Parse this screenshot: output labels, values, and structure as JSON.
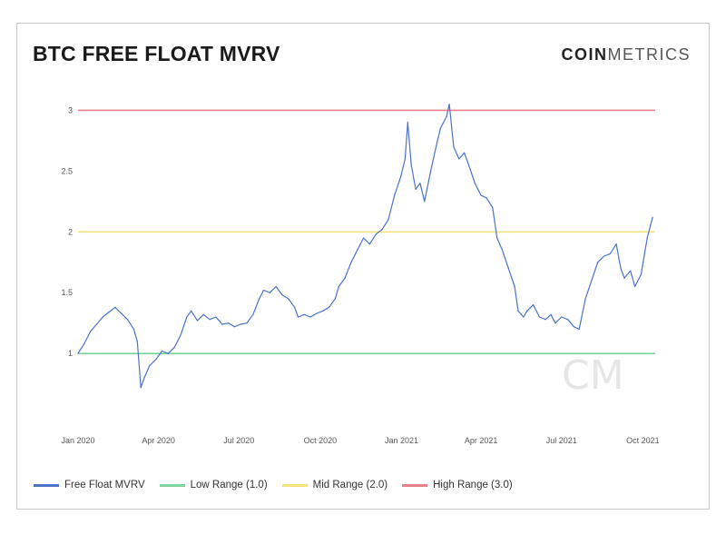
{
  "header": {
    "title": "BTC FREE FLOAT MVRV",
    "brand_bold": "COIN",
    "brand_light": "METRICS"
  },
  "watermark": "CM",
  "colors": {
    "series": "#4a73c9",
    "low": "#7ed39b",
    "mid": "#f6e27a",
    "high": "#e9818b"
  },
  "chart_data": {
    "type": "line",
    "title": "BTC FREE FLOAT MVRV",
    "xlabel": "",
    "ylabel": "",
    "grid": false,
    "legend_position": "bottom",
    "ylim": [
      0.65,
      3.1
    ],
    "xlim": [
      "2020-01-01",
      "2021-10-15"
    ],
    "yticks": [
      {
        "value": 1,
        "label": "1"
      },
      {
        "value": 1.5,
        "label": "1.5"
      },
      {
        "value": 2,
        "label": "2"
      },
      {
        "value": 2.5,
        "label": "2.5"
      },
      {
        "value": 3,
        "label": "3"
      }
    ],
    "xticks": [
      {
        "value": "2020-01-01",
        "label": "Jan 2020"
      },
      {
        "value": "2020-04-01",
        "label": "Apr 2020"
      },
      {
        "value": "2020-07-01",
        "label": "Jul 2020"
      },
      {
        "value": "2020-10-01",
        "label": "Oct 2020"
      },
      {
        "value": "2021-01-01",
        "label": "Jan 2021"
      },
      {
        "value": "2021-04-01",
        "label": "Apr 2021"
      },
      {
        "value": "2021-07-01",
        "label": "Jul 2021"
      },
      {
        "value": "2021-10-01",
        "label": "Oct 2021"
      }
    ],
    "reference_lines": [
      {
        "name": "Low Range (1.0)",
        "value": 1.0,
        "color": "#7ed39b"
      },
      {
        "name": "Mid Range (2.0)",
        "value": 2.0,
        "color": "#f6e27a"
      },
      {
        "name": "High Range (3.0)",
        "value": 3.0,
        "color": "#e9818b"
      }
    ],
    "series": [
      {
        "name": "Free Float MVRV",
        "color": "#4a73c9",
        "x": [
          "2020-01-01",
          "2020-01-08",
          "2020-01-15",
          "2020-01-22",
          "2020-01-29",
          "2020-02-05",
          "2020-02-12",
          "2020-02-19",
          "2020-02-26",
          "2020-03-04",
          "2020-03-08",
          "2020-03-12",
          "2020-03-16",
          "2020-03-22",
          "2020-03-29",
          "2020-04-05",
          "2020-04-12",
          "2020-04-19",
          "2020-04-26",
          "2020-05-03",
          "2020-05-08",
          "2020-05-15",
          "2020-05-22",
          "2020-05-29",
          "2020-06-05",
          "2020-06-12",
          "2020-06-19",
          "2020-06-26",
          "2020-07-03",
          "2020-07-10",
          "2020-07-17",
          "2020-07-24",
          "2020-07-29",
          "2020-08-05",
          "2020-08-12",
          "2020-08-19",
          "2020-08-26",
          "2020-09-02",
          "2020-09-06",
          "2020-09-13",
          "2020-09-20",
          "2020-09-27",
          "2020-10-04",
          "2020-10-11",
          "2020-10-18",
          "2020-10-22",
          "2020-10-29",
          "2020-11-05",
          "2020-11-12",
          "2020-11-19",
          "2020-11-26",
          "2020-12-03",
          "2020-12-10",
          "2020-12-17",
          "2020-12-24",
          "2020-12-31",
          "2021-01-05",
          "2021-01-08",
          "2021-01-12",
          "2021-01-17",
          "2021-01-22",
          "2021-01-27",
          "2021-02-03",
          "2021-02-09",
          "2021-02-14",
          "2021-02-21",
          "2021-02-24",
          "2021-03-01",
          "2021-03-07",
          "2021-03-13",
          "2021-03-18",
          "2021-03-25",
          "2021-04-01",
          "2021-04-07",
          "2021-04-14",
          "2021-04-19",
          "2021-04-25",
          "2021-05-02",
          "2021-05-09",
          "2021-05-13",
          "2021-05-19",
          "2021-05-23",
          "2021-05-30",
          "2021-06-06",
          "2021-06-13",
          "2021-06-19",
          "2021-06-24",
          "2021-07-01",
          "2021-07-08",
          "2021-07-15",
          "2021-07-21",
          "2021-07-28",
          "2021-08-04",
          "2021-08-11",
          "2021-08-18",
          "2021-08-25",
          "2021-09-01",
          "2021-09-06",
          "2021-09-10",
          "2021-09-17",
          "2021-09-22",
          "2021-09-29",
          "2021-10-06",
          "2021-10-12"
        ],
        "y": [
          1.0,
          1.08,
          1.18,
          1.24,
          1.3,
          1.34,
          1.38,
          1.33,
          1.28,
          1.2,
          1.1,
          0.72,
          0.8,
          0.9,
          0.95,
          1.02,
          1.0,
          1.05,
          1.15,
          1.3,
          1.35,
          1.27,
          1.32,
          1.28,
          1.3,
          1.24,
          1.25,
          1.22,
          1.24,
          1.25,
          1.32,
          1.45,
          1.52,
          1.5,
          1.55,
          1.48,
          1.45,
          1.38,
          1.3,
          1.32,
          1.3,
          1.33,
          1.35,
          1.38,
          1.45,
          1.55,
          1.62,
          1.75,
          1.85,
          1.95,
          1.9,
          1.98,
          2.02,
          2.1,
          2.3,
          2.45,
          2.6,
          2.9,
          2.55,
          2.35,
          2.4,
          2.25,
          2.5,
          2.7,
          2.85,
          2.95,
          3.05,
          2.7,
          2.6,
          2.65,
          2.55,
          2.4,
          2.3,
          2.28,
          2.2,
          1.95,
          1.85,
          1.7,
          1.55,
          1.35,
          1.3,
          1.35,
          1.4,
          1.3,
          1.28,
          1.32,
          1.25,
          1.3,
          1.28,
          1.22,
          1.2,
          1.45,
          1.6,
          1.75,
          1.8,
          1.82,
          1.9,
          1.7,
          1.62,
          1.68,
          1.55,
          1.65,
          1.95,
          2.12
        ]
      }
    ]
  }
}
